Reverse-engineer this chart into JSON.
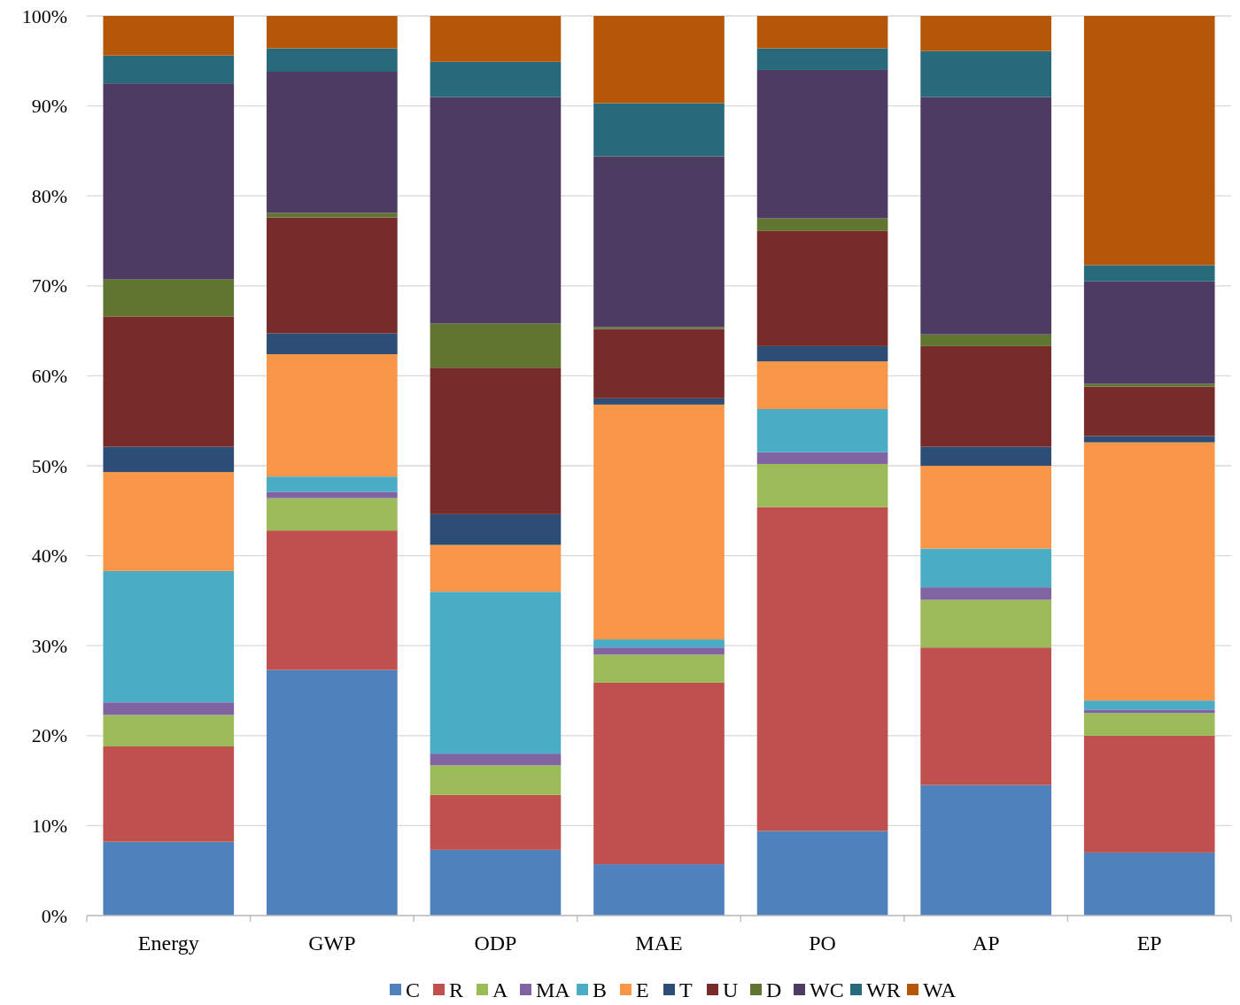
{
  "chart_data": {
    "type": "bar",
    "stacked": true,
    "categories": [
      "Energy",
      "GWP",
      "ODP",
      "MAE",
      "PO",
      "AP",
      "EP"
    ],
    "series": [
      {
        "name": "C",
        "color": "#4f81bd",
        "values": [
          8.2,
          27.3,
          7.3,
          5.7,
          9.4,
          14.5,
          7.0
        ]
      },
      {
        "name": "R",
        "color": "#c0504d",
        "values": [
          10.6,
          15.5,
          6.1,
          20.2,
          36.0,
          15.3,
          13.0
        ]
      },
      {
        "name": "A",
        "color": "#9bbb59",
        "values": [
          3.5,
          3.6,
          3.3,
          3.1,
          4.8,
          5.3,
          2.5
        ]
      },
      {
        "name": "MA",
        "color": "#8064a2",
        "values": [
          1.4,
          0.7,
          1.3,
          0.8,
          1.3,
          1.4,
          0.4
        ]
      },
      {
        "name": "B",
        "color": "#4bacc6",
        "values": [
          14.6,
          1.7,
          18.0,
          0.9,
          4.8,
          4.3,
          1.0
        ]
      },
      {
        "name": "E",
        "color": "#f79646",
        "values": [
          11.0,
          13.6,
          5.2,
          26.1,
          5.3,
          9.2,
          28.7
        ]
      },
      {
        "name": "T",
        "color": "#2c4d75",
        "values": [
          2.8,
          2.3,
          3.4,
          0.7,
          1.7,
          2.1,
          0.7
        ]
      },
      {
        "name": "U",
        "color": "#772c2a",
        "values": [
          14.5,
          12.9,
          16.3,
          7.7,
          12.8,
          11.2,
          5.5
        ]
      },
      {
        "name": "D",
        "color": "#5f7530",
        "values": [
          4.1,
          0.5,
          4.9,
          0.2,
          1.4,
          1.3,
          0.3
        ]
      },
      {
        "name": "WC",
        "color": "#4d3b62",
        "values": [
          21.8,
          15.7,
          25.2,
          19.0,
          16.5,
          26.4,
          11.4
        ]
      },
      {
        "name": "WR",
        "color": "#276a7c",
        "values": [
          3.1,
          2.6,
          3.9,
          5.9,
          2.4,
          5.1,
          1.8
        ]
      },
      {
        "name": "WA",
        "color": "#b65708",
        "values": [
          4.4,
          3.6,
          5.1,
          9.7,
          3.6,
          3.9,
          27.7
        ]
      }
    ],
    "ylim": [
      0,
      100
    ],
    "yticks": [
      {
        "value": 0,
        "label": "0%"
      },
      {
        "value": 10,
        "label": "10%"
      },
      {
        "value": 20,
        "label": "20%"
      },
      {
        "value": 30,
        "label": "30%"
      },
      {
        "value": 40,
        "label": "40%"
      },
      {
        "value": 50,
        "label": "50%"
      },
      {
        "value": 60,
        "label": "60%"
      },
      {
        "value": 70,
        "label": "70%"
      },
      {
        "value": 80,
        "label": "80%"
      },
      {
        "value": 90,
        "label": "90%"
      },
      {
        "value": 100,
        "label": "100%"
      }
    ],
    "grid": "y",
    "legend": "bottom"
  }
}
